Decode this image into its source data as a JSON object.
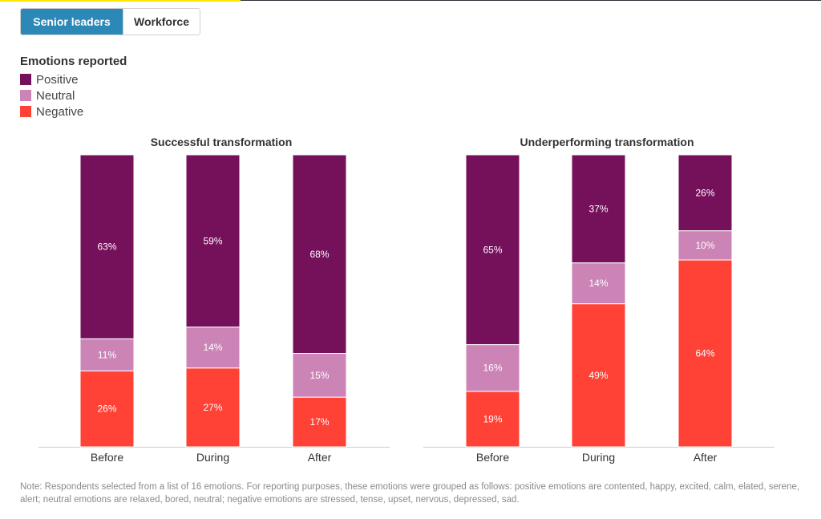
{
  "toggle": {
    "active_label": "Senior leaders",
    "inactive_label": "Workforce"
  },
  "legend": {
    "title": "Emotions reported",
    "items": [
      {
        "label": "Positive",
        "color": "#75105b"
      },
      {
        "label": "Neutral",
        "color": "#cc84b6"
      },
      {
        "label": "Negative",
        "color": "#ff4136"
      }
    ]
  },
  "chart_data": [
    {
      "type": "bar",
      "stacked": true,
      "title": "Successful transformation",
      "categories": [
        "Before",
        "During",
        "After"
      ],
      "series": [
        {
          "name": "Negative",
          "values": [
            26,
            27,
            17
          ],
          "labels": [
            "26%",
            "27%",
            "17%"
          ]
        },
        {
          "name": "Neutral",
          "values": [
            11,
            14,
            15
          ],
          "labels": [
            "11%",
            "14%",
            "15%"
          ]
        },
        {
          "name": "Positive",
          "values": [
            63,
            59,
            68
          ],
          "labels": [
            "63%",
            "59%",
            "68%"
          ]
        }
      ],
      "ylim": [
        0,
        100
      ]
    },
    {
      "type": "bar",
      "stacked": true,
      "title": "Underperforming transformation",
      "categories": [
        "Before",
        "During",
        "After"
      ],
      "series": [
        {
          "name": "Negative",
          "values": [
            19,
            49,
            64
          ],
          "labels": [
            "19%",
            "49%",
            "64%"
          ]
        },
        {
          "name": "Neutral",
          "values": [
            16,
            14,
            10
          ],
          "labels": [
            "16%",
            "14%",
            "10%"
          ]
        },
        {
          "name": "Positive",
          "values": [
            65,
            37,
            26
          ],
          "labels": [
            "65%",
            "37%",
            "26%"
          ]
        }
      ],
      "ylim": [
        0,
        100
      ]
    }
  ],
  "note": "Note: Respondents selected from a list of 16 emotions. For reporting purposes, these emotions were grouped as follows: positive emotions are contented, happy, excited, calm, elated, serene, alert; neutral emotions are relaxed, bored, neutral; negative emotions are stressed, tense, upset, nervous, depressed, sad."
}
